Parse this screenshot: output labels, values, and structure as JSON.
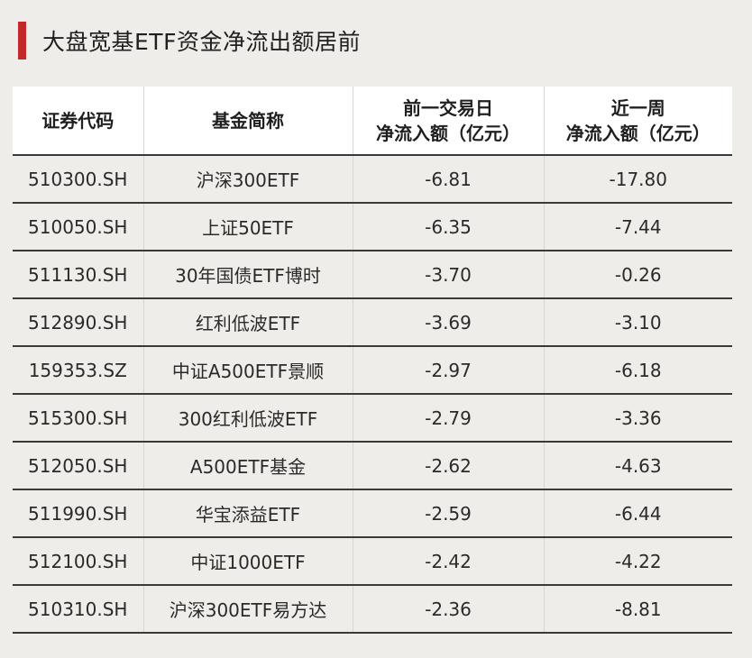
{
  "title": "大盘宽基ETF资金净流出额居前",
  "colors": {
    "accent": "#c22a2a",
    "background": "#efedea",
    "header_bg": "#ffffff"
  },
  "table": {
    "headers": [
      {
        "line1": "证券代码",
        "line2": ""
      },
      {
        "line1": "基金简称",
        "line2": ""
      },
      {
        "line1": "前一交易日",
        "line2": "净流入额（亿元）"
      },
      {
        "line1": "近一周",
        "line2": "净流入额（亿元）"
      }
    ],
    "rows": [
      {
        "code": "510300.SH",
        "name": "沪深300ETF",
        "day": "-6.81",
        "week": "-17.80"
      },
      {
        "code": "510050.SH",
        "name": "上证50ETF",
        "day": "-6.35",
        "week": "-7.44"
      },
      {
        "code": "511130.SH",
        "name": "30年国债ETF博时",
        "day": "-3.70",
        "week": "-0.26"
      },
      {
        "code": "512890.SH",
        "name": "红利低波ETF",
        "day": "-3.69",
        "week": "-3.10"
      },
      {
        "code": "159353.SZ",
        "name": "中证A500ETF景顺",
        "day": "-2.97",
        "week": "-6.18"
      },
      {
        "code": "515300.SH",
        "name": "300红利低波ETF",
        "day": "-2.79",
        "week": "-3.36"
      },
      {
        "code": "512050.SH",
        "name": "A500ETF基金",
        "day": "-2.62",
        "week": "-4.63"
      },
      {
        "code": "511990.SH",
        "name": "华宝添益ETF",
        "day": "-2.59",
        "week": "-6.44"
      },
      {
        "code": "512100.SH",
        "name": "中证1000ETF",
        "day": "-2.42",
        "week": "-4.22"
      },
      {
        "code": "510310.SH",
        "name": "沪深300ETF易方达",
        "day": "-2.36",
        "week": "-8.81"
      }
    ]
  }
}
